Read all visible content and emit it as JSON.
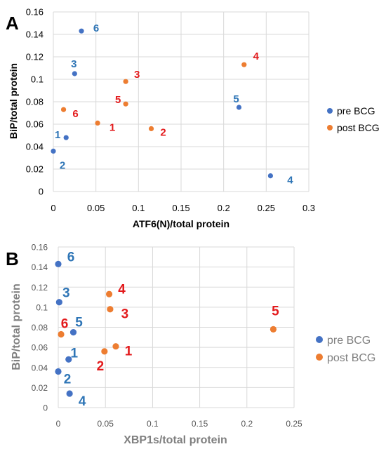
{
  "colors": {
    "pre": "#4472c4",
    "post": "#ed7d31",
    "pre_label": "#2e75b6",
    "post_label": "#e31a1c",
    "grid": "#d9d9d9"
  },
  "chart_data": [
    {
      "type": "scatter",
      "panel_letter": "A",
      "xlabel": "ATF6(N)/total protein",
      "ylabel": "BiP/total protein",
      "xlim": [
        0,
        0.3
      ],
      "ylim": [
        0,
        0.16
      ],
      "x_ticks": [
        "0",
        "0.05",
        "0.1",
        "0.15",
        "0.2",
        "0.25",
        "0.3"
      ],
      "y_ticks": [
        "0",
        "0.02",
        "0.04",
        "0.06",
        "0.08",
        "0.1",
        "0.12",
        "0.14",
        "0.16"
      ],
      "grid": true,
      "legend_position": "right",
      "series": [
        {
          "name": "pre BCG",
          "points": [
            {
              "label": "1",
              "x": 0.015,
              "y": 0.048
            },
            {
              "label": "2",
              "x": 0.0,
              "y": 0.036
            },
            {
              "label": "3",
              "x": 0.025,
              "y": 0.105
            },
            {
              "label": "4",
              "x": 0.255,
              "y": 0.014
            },
            {
              "label": "5",
              "x": 0.218,
              "y": 0.075
            },
            {
              "label": "6",
              "x": 0.033,
              "y": 0.143
            }
          ]
        },
        {
          "name": "post BCG",
          "points": [
            {
              "label": "1",
              "x": 0.052,
              "y": 0.061
            },
            {
              "label": "2",
              "x": 0.115,
              "y": 0.056
            },
            {
              "label": "3",
              "x": 0.085,
              "y": 0.098
            },
            {
              "label": "4",
              "x": 0.224,
              "y": 0.113
            },
            {
              "label": "5",
              "x": 0.085,
              "y": 0.078
            },
            {
              "label": "6",
              "x": 0.012,
              "y": 0.073
            }
          ]
        }
      ]
    },
    {
      "type": "scatter",
      "panel_letter": "B",
      "xlabel": "XBP1s/total protein",
      "ylabel": "BiP/total protein",
      "xlim": [
        0,
        0.25
      ],
      "ylim": [
        0,
        0.16
      ],
      "x_ticks": [
        "0",
        "0.05",
        "0.1",
        "0.15",
        "0.2",
        "0.25"
      ],
      "y_ticks": [
        "0",
        "0.02",
        "0.04",
        "0.06",
        "0.08",
        "0.1",
        "0.12",
        "0.14",
        "0.16"
      ],
      "grid": true,
      "legend_position": "right",
      "series": [
        {
          "name": "pre BCG",
          "points": [
            {
              "label": "1",
              "x": 0.011,
              "y": 0.048
            },
            {
              "label": "2",
              "x": 0.0,
              "y": 0.036
            },
            {
              "label": "3",
              "x": 0.001,
              "y": 0.105
            },
            {
              "label": "4",
              "x": 0.012,
              "y": 0.014
            },
            {
              "label": "5",
              "x": 0.016,
              "y": 0.075
            },
            {
              "label": "6",
              "x": 0.0,
              "y": 0.143
            }
          ]
        },
        {
          "name": "post BCG",
          "points": [
            {
              "label": "1",
              "x": 0.061,
              "y": 0.061
            },
            {
              "label": "2",
              "x": 0.049,
              "y": 0.056
            },
            {
              "label": "3",
              "x": 0.055,
              "y": 0.098
            },
            {
              "label": "4",
              "x": 0.054,
              "y": 0.113
            },
            {
              "label": "5",
              "x": 0.228,
              "y": 0.078
            },
            {
              "label": "6",
              "x": 0.003,
              "y": 0.073
            }
          ]
        }
      ]
    }
  ]
}
